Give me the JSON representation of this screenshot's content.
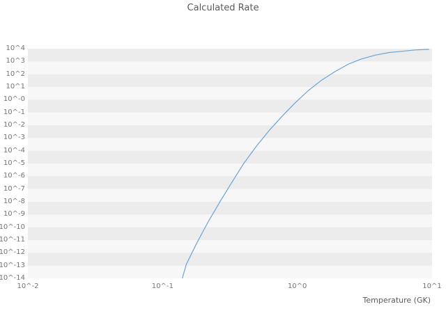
{
  "chart_data": {
    "type": "line",
    "title": "Calculated Rate",
    "xlabel": "Temperature (GK)",
    "ylabel": "",
    "x_scale": "log",
    "y_scale": "log",
    "xlim_log10": [
      -2,
      1
    ],
    "ylim_log10": [
      -14,
      4
    ],
    "x_tick_labels": [
      "10^-2",
      "10^-1",
      "10^0",
      "10^1"
    ],
    "y_tick_labels": [
      "10^4",
      "10^3",
      "10^2",
      "10^1",
      "10^-0",
      "10^-1",
      "10^-2",
      "10^-3",
      "10^-4",
      "10^-5",
      "10^-6",
      "10^-7",
      "10^-8",
      "10^-9",
      "10^-10",
      "10^-11",
      "10^-12",
      "10^-13",
      "10^-14"
    ],
    "grid": "horizontal-bands",
    "legend": "none",
    "colors": {
      "line": "#6ba3d6",
      "band_dark": "#ececec",
      "band_light": "#f7f7f7",
      "tick_text": "#737373",
      "title_text": "#595959"
    },
    "series": [
      {
        "name": "Calculated Rate",
        "x": [
          0.14,
          0.15,
          0.18,
          0.22,
          0.27,
          0.33,
          0.4,
          0.5,
          0.62,
          0.77,
          0.95,
          1.2,
          1.5,
          1.9,
          2.4,
          3.0,
          3.8,
          4.8,
          6.0,
          7.5,
          9.5
        ],
        "y": [
          1e-14,
          1.26e-13,
          6.3e-12,
          3.2e-10,
          1.26e-08,
          4e-07,
          1e-05,
          0.00025,
          0.004,
          0.05,
          0.5,
          5.0,
          31.6,
          158,
          631,
          1585,
          3162,
          5012,
          6310,
          7943,
          8913
        ]
      }
    ]
  }
}
